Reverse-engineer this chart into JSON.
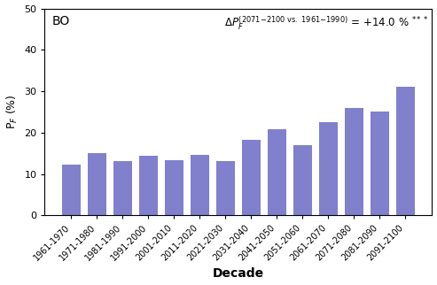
{
  "categories": [
    "1961-1970",
    "1971-1980",
    "1981-1990",
    "1991-2000",
    "2001-2010",
    "2011-2020",
    "2021-2030",
    "2031-2040",
    "2041-2050",
    "2051-2060",
    "2061-2070",
    "2071-2080",
    "2081-2090",
    "2091-2100"
  ],
  "values": [
    12.2,
    15.0,
    13.2,
    14.4,
    13.3,
    14.6,
    13.1,
    18.3,
    20.9,
    17.0,
    22.5,
    26.0,
    25.2,
    31.1
  ],
  "bar_color": "#8080cc",
  "title_label": "BO",
  "delta_value": " = +14.0 %",
  "delta_stars": "***",
  "ylabel": "P$_F$ (%)",
  "xlabel": "Decade",
  "ylim": [
    0,
    50
  ],
  "yticks": [
    0,
    10,
    20,
    30,
    40,
    50
  ],
  "background_color": "#ffffff",
  "plot_bg_color": "#ffffff"
}
